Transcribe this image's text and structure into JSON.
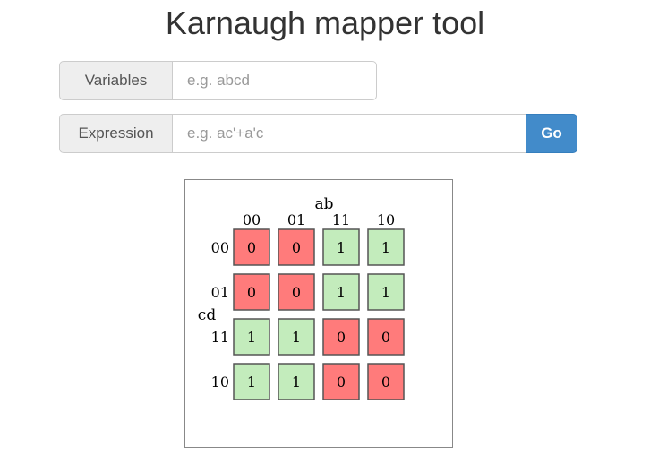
{
  "header": {
    "title": "Karnaugh mapper tool"
  },
  "form": {
    "variables": {
      "label": "Variables",
      "value": "",
      "placeholder": "e.g. abcd"
    },
    "expression": {
      "label": "Expression",
      "value": "",
      "placeholder": "e.g. ac'+a'c"
    },
    "go_label": "Go"
  },
  "kmap": {
    "column_variable": "ab",
    "row_variable": "cd",
    "column_headers": [
      "00",
      "01",
      "11",
      "10"
    ],
    "row_headers": [
      "00",
      "01",
      "11",
      "10"
    ],
    "cells": [
      [
        "0",
        "0",
        "1",
        "1"
      ],
      [
        "0",
        "0",
        "1",
        "1"
      ],
      [
        "1",
        "1",
        "0",
        "0"
      ],
      [
        "1",
        "1",
        "0",
        "0"
      ]
    ],
    "colors": {
      "zero": "#ff7b7b",
      "one": "#c3ecbc",
      "cell_border": "#555555"
    }
  }
}
